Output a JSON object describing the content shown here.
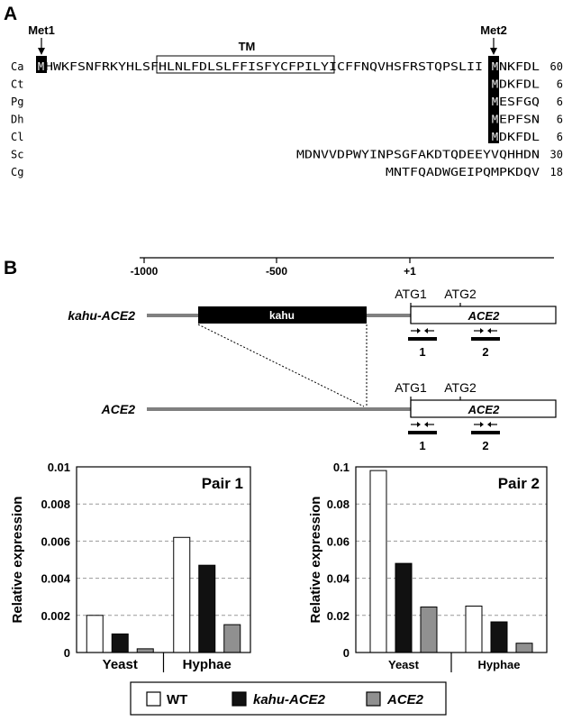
{
  "panel_a": {
    "letter": "A",
    "met1_label": "Met1",
    "met2_label": "Met2",
    "tm_label": "TM",
    "rows": [
      {
        "species": "Ca",
        "pre_met2": "MHWKFSNFRKYHLSFHLNLFDLSLFFISFYCFPILYICFFNQVHSFRSTQPSLII",
        "met2_residue": "M",
        "post_met2": "NKFDL",
        "count": "60"
      },
      {
        "species": "Ct",
        "pre_met2": "",
        "met2_residue": "M",
        "post_met2": "DKFDL",
        "count": "6"
      },
      {
        "species": "Pg",
        "pre_met2": "",
        "met2_residue": "M",
        "post_met2": "ESFGQ",
        "count": "6"
      },
      {
        "species": "Dh",
        "pre_met2": "",
        "met2_residue": "M",
        "post_met2": "EPFSN",
        "count": "6"
      },
      {
        "species": "Cl",
        "pre_met2": "",
        "met2_residue": "M",
        "post_met2": "DKFDL",
        "count": "6"
      },
      {
        "species": "Sc",
        "pre_met2": "MDNVVDPWYINPSGFAKDTQDEEYVQHHDN",
        "met2_residue": "",
        "post_met2": "",
        "count": "30"
      },
      {
        "species": "Cg",
        "pre_met2": "MNTFQADWGEIPQMPKDQV",
        "met2_residue": "",
        "post_met2": "",
        "count": "18"
      }
    ]
  },
  "panel_b": {
    "letter": "B",
    "scale_ticks": [
      "-1000",
      "-500",
      "+1"
    ],
    "constructs": [
      {
        "label": "kahu-ACE2",
        "insert_label": "kahu",
        "gene_label": "ACE2",
        "atg1": "ATG1",
        "atg2": "ATG2",
        "primer_pairs": [
          "1",
          "2"
        ]
      },
      {
        "label": "ACE2",
        "gene_label": "ACE2",
        "atg1": "ATG1",
        "atg2": "ATG2",
        "primer_pairs": [
          "1",
          "2"
        ]
      }
    ]
  },
  "chart_data": [
    {
      "type": "bar",
      "title": "Pair 1",
      "ylabel": "Relative expression",
      "xlabel": "",
      "categories": [
        "Yeast",
        "Hyphae"
      ],
      "ylim": [
        0,
        0.01
      ],
      "yticks": [
        "0",
        "0.002",
        "0.004",
        "0.006",
        "0.008",
        "0.01"
      ],
      "grid": "horizontal dashed",
      "series": [
        {
          "name": "WT",
          "values": [
            0.002,
            0.0062
          ]
        },
        {
          "name": "kahu-ACE2",
          "values": [
            0.001,
            0.0047
          ]
        },
        {
          "name": "ACE2",
          "values": [
            0.0002,
            0.0015
          ]
        }
      ]
    },
    {
      "type": "bar",
      "title": "Pair 2",
      "ylabel": "Relative expression",
      "xlabel": "",
      "categories": [
        "Yeast",
        "Hyphae"
      ],
      "ylim": [
        0,
        0.1
      ],
      "yticks": [
        "0",
        "0.02",
        "0.04",
        "0.06",
        "0.08",
        "0.1"
      ],
      "grid": "horizontal dashed",
      "series": [
        {
          "name": "WT",
          "values": [
            0.098,
            0.025
          ]
        },
        {
          "name": "kahu-ACE2",
          "values": [
            0.048,
            0.0165
          ]
        },
        {
          "name": "ACE2",
          "values": [
            0.0245,
            0.005
          ]
        }
      ]
    }
  ],
  "legend": {
    "placement": "bottom-center",
    "entries": [
      {
        "label": "WT",
        "color": "#ffffff"
      },
      {
        "label": "kahu-ACE2",
        "color": "#111111"
      },
      {
        "label": "ACE2",
        "color": "#909090"
      }
    ]
  },
  "colors": {
    "ink": "#000000",
    "promoter_line": "#808080",
    "grid": "#999999"
  }
}
